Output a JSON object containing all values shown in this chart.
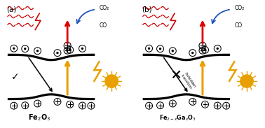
{
  "bg_color": "#ffffff",
  "panel_a_label": "(a)",
  "panel_b_label": "(b)",
  "co2_label": "CO₂",
  "co_label": "CO",
  "band_color": "#000000",
  "arrow_red": "#dd0000",
  "arrow_yellow": "#e8a000",
  "arrow_blue": "#2255bb",
  "heat_color": "#cc0000",
  "sun_color": "#e8a000",
  "bolt_color": "#e8a000",
  "formula_a": "Fe$_2$O$_3$",
  "formula_b": "Fe$_{2-x}$Ga$_x$O$_3$"
}
